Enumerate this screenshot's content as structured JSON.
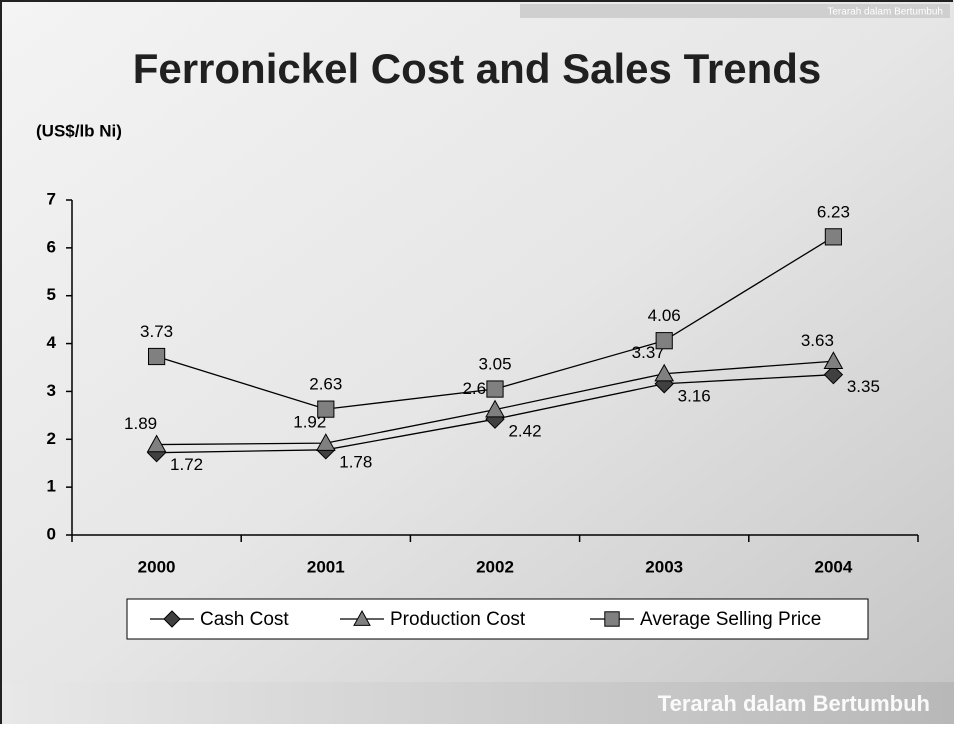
{
  "branding": {
    "tagline": "Terarah dalam Bertumbuh"
  },
  "chart_data": {
    "type": "line",
    "title": "Ferronickel Cost and Sales Trends",
    "y_label": "(US$/lb Ni)",
    "categories": [
      "2000",
      "2001",
      "2002",
      "2003",
      "2004"
    ],
    "series": [
      {
        "name": "Cash Cost",
        "color": "#404040",
        "marker": "diamond",
        "values": [
          1.72,
          1.78,
          2.42,
          3.16,
          3.35
        ]
      },
      {
        "name": "Production Cost",
        "color": "#808080",
        "marker": "triangle",
        "values": [
          1.89,
          1.92,
          2.62,
          3.37,
          3.63
        ]
      },
      {
        "name": "Average Selling Price",
        "color": "#808080",
        "marker": "square",
        "values": [
          3.73,
          2.63,
          3.05,
          4.06,
          6.23
        ]
      }
    ],
    "ylim": [
      0,
      7
    ],
    "yticks": [
      0,
      1,
      2,
      3,
      4,
      5,
      6,
      7
    ],
    "grid": false,
    "legend": "bottom"
  }
}
